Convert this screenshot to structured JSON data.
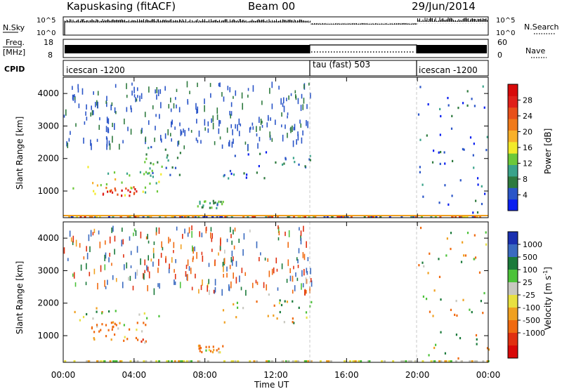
{
  "header": {
    "station": "Kapuskasing (fitACF)",
    "beam": "Beam 00",
    "date": "29/Jun/2014"
  },
  "noise_panel": {
    "left_label": "N.Sky",
    "right_label": "N.Search",
    "left_ticks": [
      "10^5",
      "10^0"
    ],
    "right_ticks": [
      "10^5",
      "10^0"
    ]
  },
  "freq_panel": {
    "left_label_line1": "Freq.",
    "left_label_line2": "[MHz]",
    "right_label": "Nave",
    "left_ticks": [
      "18",
      "8"
    ],
    "right_ticks": [
      "60",
      "0"
    ]
  },
  "cpid": {
    "label": "CPID",
    "segments": [
      {
        "name": "icescan -1200",
        "start_hour": 0,
        "end_hour": 14
      },
      {
        "name": "tau (fast) 503",
        "start_hour": 14,
        "end_hour": 20
      },
      {
        "name": "icescan -1200",
        "start_hour": 20,
        "end_hour": 24
      }
    ]
  },
  "time_axis": {
    "label": "Time UT",
    "ticks": [
      "00:00",
      "04:00",
      "08:00",
      "12:00",
      "16:00",
      "20:00",
      "00:00"
    ]
  },
  "range_axis": {
    "label": "Slant Range [km]",
    "ticks": [
      "1000",
      "2000",
      "3000",
      "4000"
    ]
  },
  "power_scale": {
    "label": "Power [dB]",
    "ticks": [
      "4",
      "8",
      "12",
      "16",
      "20",
      "24",
      "28"
    ],
    "colors": [
      "#0a1ff0",
      "#2a55c8",
      "#2e7a3e",
      "#3aa38a",
      "#6cc83a",
      "#f2ea2a",
      "#f8b02a",
      "#f07a1a",
      "#e8501a",
      "#e0201a",
      "#d80a0a"
    ]
  },
  "velocity_scale": {
    "label": "Velocity [m s",
    "label_sup": "-1",
    "label_end": "]",
    "ticks": [
      "1000",
      "500",
      "100",
      "25",
      "-25",
      "-100",
      "-500",
      "-1000"
    ],
    "colors": [
      "#1a30b0",
      "#3a6ac0",
      "#1a7a3a",
      "#4cc23a",
      "#c8c8c0",
      "#e8e040",
      "#f0a020",
      "#f06a10",
      "#e03010",
      "#d80808"
    ]
  },
  "chart_data": [
    {
      "type": "heatmap",
      "title": "Power",
      "xlabel": "Time UT",
      "ylabel": "Slant Range [km]",
      "x_range_hours": [
        0,
        24
      ],
      "ylim": [
        180,
        4500
      ],
      "colorbar": {
        "label": "Power [dB]",
        "range": [
          0,
          32
        ],
        "ticks": [
          4,
          8,
          12,
          16,
          20,
          24,
          28
        ]
      },
      "echo_regions": [
        {
          "t_start": 0.5,
          "t_end": 5.5,
          "range_start": 800,
          "range_end": 1900,
          "power_db": 14
        },
        {
          "t_start": 2.2,
          "t_end": 4.4,
          "range_start": 850,
          "range_end": 1150,
          "power_db": 26
        },
        {
          "t_start": 4.0,
          "t_end": 6.6,
          "range_start": 1500,
          "range_end": 2400,
          "power_db": 8
        },
        {
          "t_start": 7.5,
          "t_end": 9.0,
          "range_start": 500,
          "range_end": 750,
          "power_db": 10
        },
        {
          "t_start": 9.0,
          "t_end": 14.0,
          "range_start": 1400,
          "range_end": 2300,
          "power_db": 6
        },
        {
          "t_start": 20.0,
          "t_end": 24.0,
          "range_start": 300,
          "range_end": 4400,
          "power_db": 5
        }
      ]
    },
    {
      "type": "heatmap",
      "title": "Velocity",
      "xlabel": "Time UT",
      "ylabel": "Slant Range [km]",
      "x_range_hours": [
        0,
        24
      ],
      "ylim": [
        180,
        4500
      ],
      "colorbar": {
        "label": "Velocity [m s-1]",
        "ticks": [
          1000,
          500,
          100,
          25,
          -25,
          -100,
          -500,
          -1000
        ]
      },
      "echo_regions": [
        {
          "t_start": 0.5,
          "t_end": 5.5,
          "range_start": 800,
          "range_end": 1900,
          "velocity": 0
        },
        {
          "t_start": 1.5,
          "t_end": 4.5,
          "range_start": 850,
          "range_end": 1500,
          "velocity": -400
        },
        {
          "t_start": 7.5,
          "t_end": 9.0,
          "range_start": 500,
          "range_end": 750,
          "velocity": -100
        },
        {
          "t_start": 9.0,
          "t_end": 14.0,
          "range_start": 1400,
          "range_end": 2300,
          "velocity": 0
        },
        {
          "t_start": 20.0,
          "t_end": 24.0,
          "range_start": 300,
          "range_end": 4400,
          "velocity": 0
        }
      ]
    }
  ]
}
